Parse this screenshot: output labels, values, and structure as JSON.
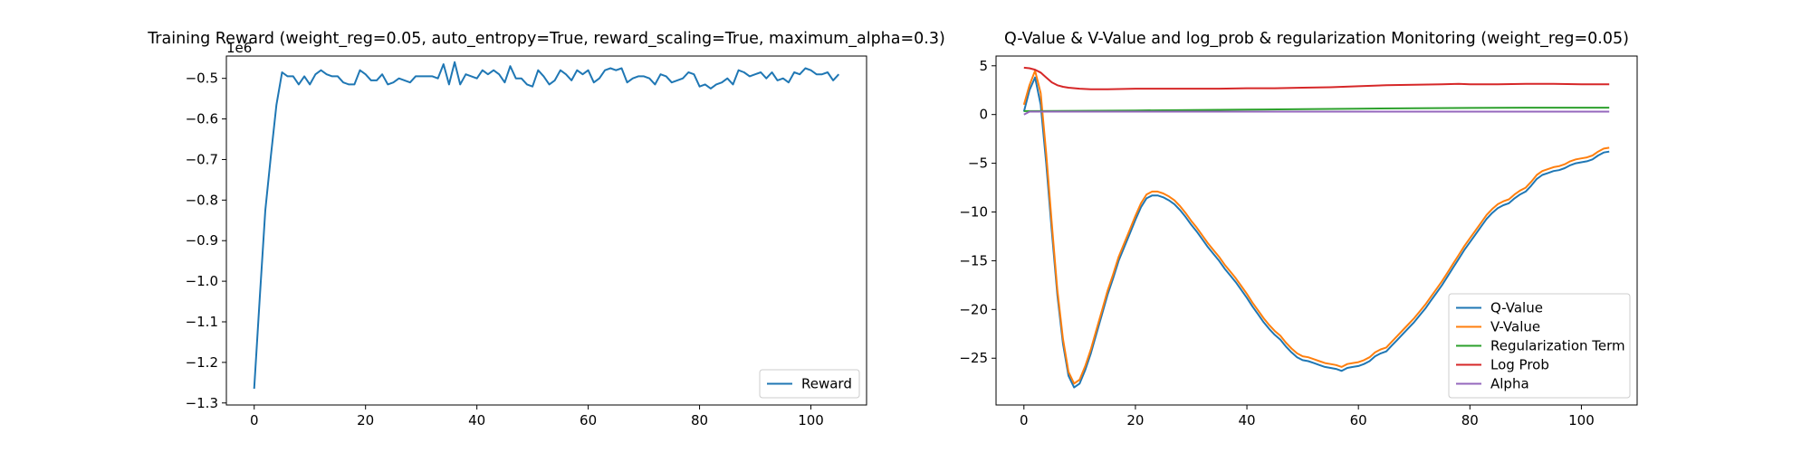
{
  "chart_data": [
    {
      "type": "line",
      "title": "Training Reward (weight_reg=0.05, auto_entropy=True, reward_scaling=True, maximum_alpha=0.3)",
      "xlabel": "",
      "ylabel": "",
      "y_offset_label": "1e6",
      "xlim": [
        -5,
        110
      ],
      "ylim": [
        -1.305,
        -0.445
      ],
      "x_ticks": [
        0,
        20,
        40,
        60,
        80,
        100
      ],
      "y_ticks": [
        -1.3,
        -1.2,
        -1.1,
        -1.0,
        -0.9,
        -0.8,
        -0.7,
        -0.6,
        -0.5
      ],
      "y_tick_labels": [
        "−1.3",
        "−1.2",
        "−1.1",
        "−1.0",
        "−0.9",
        "−0.8",
        "−0.7",
        "−0.6",
        "−0.5"
      ],
      "grid": false,
      "legend_position": "lower right",
      "series": [
        {
          "name": "Reward",
          "color": "#1f77b4",
          "x": [
            0,
            1,
            2,
            3,
            4,
            5,
            6,
            7,
            8,
            9,
            10,
            11,
            12,
            13,
            14,
            15,
            16,
            17,
            18,
            19,
            20,
            21,
            22,
            23,
            24,
            25,
            26,
            27,
            28,
            29,
            30,
            31,
            32,
            33,
            34,
            35,
            36,
            37,
            38,
            39,
            40,
            41,
            42,
            43,
            44,
            45,
            46,
            47,
            48,
            49,
            50,
            51,
            52,
            53,
            54,
            55,
            56,
            57,
            58,
            59,
            60,
            61,
            62,
            63,
            64,
            65,
            66,
            67,
            68,
            69,
            70,
            71,
            72,
            73,
            74,
            75,
            76,
            77,
            78,
            79,
            80,
            81,
            82,
            83,
            84,
            85,
            86,
            87,
            88,
            89,
            90,
            91,
            92,
            93,
            94,
            95,
            96,
            97,
            98,
            99,
            100,
            101,
            102,
            103,
            104,
            105
          ],
          "values": [
            -1.265,
            -1.04,
            -0.825,
            -0.69,
            -0.565,
            -0.485,
            -0.495,
            -0.495,
            -0.515,
            -0.495,
            -0.515,
            -0.49,
            -0.48,
            -0.49,
            -0.495,
            -0.495,
            -0.51,
            -0.515,
            -0.515,
            -0.48,
            -0.49,
            -0.505,
            -0.505,
            -0.49,
            -0.515,
            -0.51,
            -0.5,
            -0.505,
            -0.51,
            -0.495,
            -0.495,
            -0.495,
            -0.495,
            -0.5,
            -0.465,
            -0.515,
            -0.46,
            -0.515,
            -0.49,
            -0.495,
            -0.5,
            -0.48,
            -0.49,
            -0.48,
            -0.49,
            -0.51,
            -0.47,
            -0.5,
            -0.5,
            -0.515,
            -0.52,
            -0.48,
            -0.495,
            -0.515,
            -0.505,
            -0.48,
            -0.49,
            -0.505,
            -0.48,
            -0.49,
            -0.48,
            -0.51,
            -0.5,
            -0.48,
            -0.475,
            -0.48,
            -0.475,
            -0.51,
            -0.5,
            -0.495,
            -0.495,
            -0.5,
            -0.515,
            -0.49,
            -0.495,
            -0.51,
            -0.505,
            -0.5,
            -0.485,
            -0.49,
            -0.52,
            -0.515,
            -0.525,
            -0.515,
            -0.51,
            -0.5,
            -0.515,
            -0.48,
            -0.485,
            -0.495,
            -0.49,
            -0.485,
            -0.5,
            -0.485,
            -0.505,
            -0.5,
            -0.51,
            -0.485,
            -0.49,
            -0.475,
            -0.48,
            -0.49,
            -0.49,
            -0.485,
            -0.505,
            -0.49
          ]
        }
      ]
    },
    {
      "type": "line",
      "title": "Q-Value & V-Value and log_prob & regularization Monitoring (weight_reg=0.05)",
      "xlabel": "",
      "ylabel": "",
      "xlim": [
        -5,
        110
      ],
      "ylim": [
        -29.8,
        6.0
      ],
      "x_ticks": [
        0,
        20,
        40,
        60,
        80,
        100
      ],
      "y_ticks": [
        -25,
        -20,
        -15,
        -10,
        -5,
        0,
        5
      ],
      "y_tick_labels": [
        "−25",
        "−20",
        "−15",
        "−10",
        "−5",
        "0",
        "5"
      ],
      "grid": false,
      "legend_position": "lower right",
      "series": [
        {
          "name": "Q-Value",
          "color": "#1f77b4",
          "x": [
            0,
            1,
            2,
            3,
            4,
            5,
            6,
            7,
            8,
            9,
            10,
            11,
            12,
            13,
            14,
            15,
            16,
            17,
            18,
            19,
            20,
            21,
            22,
            23,
            24,
            25,
            26,
            27,
            28,
            29,
            30,
            31,
            32,
            33,
            34,
            35,
            36,
            37,
            38,
            39,
            40,
            41,
            42,
            43,
            44,
            45,
            46,
            47,
            48,
            49,
            50,
            51,
            52,
            53,
            54,
            55,
            56,
            57,
            58,
            59,
            60,
            61,
            62,
            63,
            64,
            65,
            66,
            67,
            68,
            69,
            70,
            71,
            72,
            73,
            74,
            75,
            76,
            77,
            78,
            79,
            80,
            81,
            82,
            83,
            84,
            85,
            86,
            87,
            88,
            89,
            90,
            91,
            92,
            93,
            94,
            95,
            96,
            97,
            98,
            99,
            100,
            101,
            102,
            103,
            104,
            105
          ],
          "values": [
            0.3,
            2.5,
            3.8,
            1.0,
            -5.0,
            -12.0,
            -18.5,
            -23.5,
            -26.8,
            -28.0,
            -27.6,
            -26.2,
            -24.5,
            -22.5,
            -20.5,
            -18.5,
            -16.8,
            -15.0,
            -13.6,
            -12.2,
            -10.8,
            -9.5,
            -8.6,
            -8.3,
            -8.3,
            -8.5,
            -8.8,
            -9.2,
            -9.8,
            -10.5,
            -11.3,
            -12.0,
            -12.8,
            -13.6,
            -14.3,
            -15.0,
            -15.8,
            -16.5,
            -17.2,
            -18.0,
            -18.8,
            -19.7,
            -20.5,
            -21.3,
            -22.0,
            -22.6,
            -23.1,
            -23.8,
            -24.4,
            -24.9,
            -25.2,
            -25.3,
            -25.5,
            -25.7,
            -25.9,
            -26.0,
            -26.1,
            -26.3,
            -26.0,
            -25.9,
            -25.8,
            -25.6,
            -25.3,
            -24.8,
            -24.5,
            -24.3,
            -23.7,
            -23.1,
            -22.5,
            -21.9,
            -21.3,
            -20.6,
            -19.9,
            -19.1,
            -18.3,
            -17.5,
            -16.6,
            -15.7,
            -14.8,
            -13.9,
            -13.1,
            -12.3,
            -11.5,
            -10.7,
            -10.1,
            -9.6,
            -9.3,
            -9.1,
            -8.6,
            -8.2,
            -7.9,
            -7.3,
            -6.6,
            -6.2,
            -6.0,
            -5.8,
            -5.7,
            -5.5,
            -5.2,
            -5.0,
            -4.9,
            -4.8,
            -4.6,
            -4.2,
            -3.9,
            -3.8
          ]
        },
        {
          "name": "V-Value",
          "color": "#ff7f0e",
          "x": [
            0,
            1,
            2,
            3,
            4,
            5,
            6,
            7,
            8,
            9,
            10,
            11,
            12,
            13,
            14,
            15,
            16,
            17,
            18,
            19,
            20,
            21,
            22,
            23,
            24,
            25,
            26,
            27,
            28,
            29,
            30,
            31,
            32,
            33,
            34,
            35,
            36,
            37,
            38,
            39,
            40,
            41,
            42,
            43,
            44,
            45,
            46,
            47,
            48,
            49,
            50,
            51,
            52,
            53,
            54,
            55,
            56,
            57,
            58,
            59,
            60,
            61,
            62,
            63,
            64,
            65,
            66,
            67,
            68,
            69,
            70,
            71,
            72,
            73,
            74,
            75,
            76,
            77,
            78,
            79,
            80,
            81,
            82,
            83,
            84,
            85,
            86,
            87,
            88,
            89,
            90,
            91,
            92,
            93,
            94,
            95,
            96,
            97,
            98,
            99,
            100,
            101,
            102,
            103,
            104,
            105
          ],
          "values": [
            1.0,
            3.0,
            4.5,
            2.2,
            -4.0,
            -11.2,
            -18.0,
            -23.0,
            -26.4,
            -27.6,
            -27.2,
            -25.8,
            -24.1,
            -22.1,
            -20.1,
            -18.1,
            -16.4,
            -14.6,
            -13.2,
            -11.8,
            -10.4,
            -9.1,
            -8.2,
            -7.9,
            -7.9,
            -8.1,
            -8.4,
            -8.8,
            -9.4,
            -10.1,
            -10.9,
            -11.6,
            -12.4,
            -13.2,
            -13.9,
            -14.6,
            -15.4,
            -16.1,
            -16.8,
            -17.6,
            -18.4,
            -19.3,
            -20.1,
            -20.9,
            -21.6,
            -22.2,
            -22.7,
            -23.4,
            -24.0,
            -24.5,
            -24.8,
            -24.9,
            -25.1,
            -25.3,
            -25.5,
            -25.6,
            -25.7,
            -25.9,
            -25.6,
            -25.5,
            -25.4,
            -25.2,
            -24.9,
            -24.4,
            -24.1,
            -23.9,
            -23.3,
            -22.7,
            -22.1,
            -21.5,
            -20.9,
            -20.2,
            -19.5,
            -18.7,
            -17.9,
            -17.1,
            -16.2,
            -15.3,
            -14.4,
            -13.5,
            -12.7,
            -11.9,
            -11.1,
            -10.3,
            -9.7,
            -9.2,
            -8.9,
            -8.7,
            -8.2,
            -7.8,
            -7.5,
            -6.9,
            -6.2,
            -5.8,
            -5.6,
            -5.4,
            -5.3,
            -5.1,
            -4.8,
            -4.6,
            -4.5,
            -4.4,
            -4.2,
            -3.8,
            -3.5,
            -3.4
          ]
        },
        {
          "name": "Regularization Term",
          "color": "#2ca02c",
          "x": [
            0,
            10,
            20,
            30,
            40,
            50,
            60,
            70,
            80,
            90,
            100,
            105
          ],
          "values": [
            0.35,
            0.38,
            0.42,
            0.46,
            0.5,
            0.55,
            0.6,
            0.65,
            0.68,
            0.7,
            0.7,
            0.7
          ]
        },
        {
          "name": "Log Prob",
          "color": "#d62728",
          "x": [
            0,
            1,
            2,
            3,
            4,
            5,
            6,
            7,
            8,
            10,
            12,
            15,
            20,
            25,
            30,
            35,
            40,
            45,
            50,
            55,
            60,
            65,
            70,
            75,
            78,
            80,
            85,
            90,
            95,
            100,
            105
          ],
          "values": [
            4.8,
            4.75,
            4.6,
            4.3,
            3.8,
            3.3,
            3.0,
            2.85,
            2.75,
            2.65,
            2.6,
            2.6,
            2.65,
            2.65,
            2.65,
            2.65,
            2.7,
            2.7,
            2.75,
            2.8,
            2.9,
            3.0,
            3.05,
            3.1,
            3.15,
            3.1,
            3.1,
            3.15,
            3.15,
            3.1,
            3.1
          ]
        },
        {
          "name": "Alpha",
          "color": "#9467bd",
          "x": [
            0,
            1,
            2,
            5,
            10,
            20,
            40,
            60,
            80,
            100,
            105
          ],
          "values": [
            0.0,
            0.3,
            0.3,
            0.3,
            0.3,
            0.3,
            0.3,
            0.3,
            0.3,
            0.3,
            0.3
          ]
        }
      ]
    }
  ]
}
